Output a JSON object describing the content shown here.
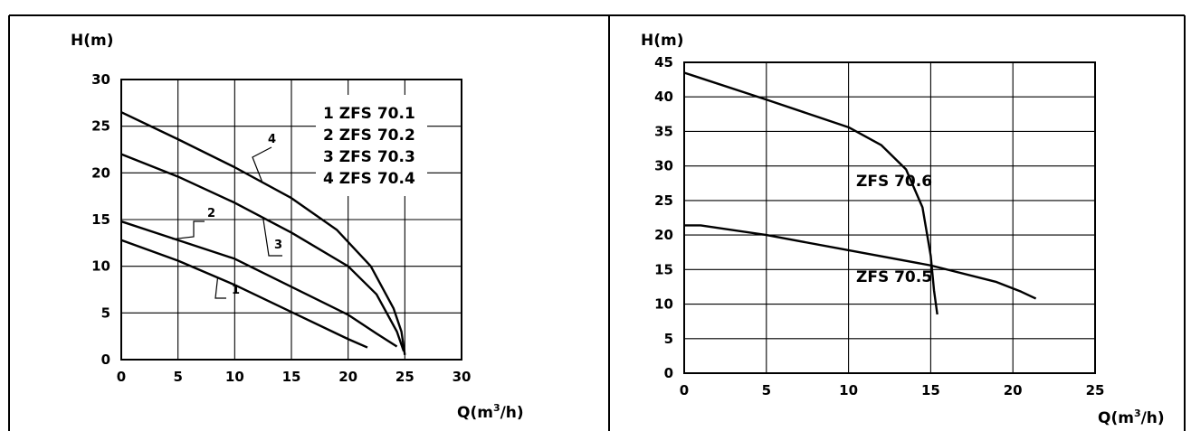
{
  "chart_data": [
    {
      "type": "line",
      "ylabel": "H(m)",
      "xlabel_main": "Q(m",
      "xlabel_sup": "3",
      "xlabel_tail": "/h)",
      "xlim": [
        0,
        30
      ],
      "ylim": [
        0,
        30
      ],
      "xticks": [
        0,
        5,
        10,
        15,
        20,
        25,
        30
      ],
      "yticks": [
        0,
        5,
        10,
        15,
        20,
        25,
        30
      ],
      "grid": true,
      "legend_box": [
        "1  ZFS 70.1",
        "2  ZFS 70.2",
        "3  ZFS 70.3",
        "4  ZFS 70.4"
      ],
      "series": [
        {
          "name": "1",
          "x": [
            0,
            5,
            10,
            15,
            20,
            21.7
          ],
          "y": [
            12.8,
            10.6,
            8,
            5.1,
            2.2,
            1.3
          ]
        },
        {
          "name": "2",
          "x": [
            0,
            5,
            10,
            15,
            20,
            22.5,
            24.3
          ],
          "y": [
            14.8,
            12.8,
            10.8,
            7.8,
            4.8,
            2.8,
            1.4
          ]
        },
        {
          "name": "3",
          "x": [
            0,
            5,
            10,
            15,
            20,
            22.5,
            24.3,
            24.9
          ],
          "y": [
            22,
            19.6,
            16.8,
            13.6,
            10,
            7,
            3,
            0.9
          ]
        },
        {
          "name": "4",
          "x": [
            0,
            5,
            10,
            15,
            19,
            22,
            24,
            24.7,
            25
          ],
          "y": [
            26.5,
            23.6,
            20.6,
            17.3,
            13.9,
            10,
            5.5,
            3,
            0.5
          ]
        }
      ]
    },
    {
      "type": "line",
      "ylabel": "H(m)",
      "xlabel_main": "Q(m",
      "xlabel_sup": "3",
      "xlabel_tail": "/h)",
      "xlim": [
        0,
        25
      ],
      "ylim": [
        0,
        45
      ],
      "xticks": [
        0,
        5,
        10,
        15,
        20,
        25
      ],
      "yticks": [
        0,
        5,
        10,
        15,
        20,
        25,
        30,
        35,
        40,
        45
      ],
      "grid": true,
      "series": [
        {
          "name": "ZFS 70.6",
          "x": [
            0,
            5,
            10,
            12,
            13.5,
            14.5,
            15,
            15.2,
            15.4
          ],
          "y": [
            43.5,
            39.6,
            35.6,
            33,
            29.5,
            24,
            17,
            12,
            8.5
          ]
        },
        {
          "name": "ZFS 70.5",
          "x": [
            0,
            1,
            5,
            10,
            15,
            19,
            20.5,
            21.4
          ],
          "y": [
            21.4,
            21.4,
            20,
            17.8,
            15.6,
            13.2,
            11.8,
            10.8
          ]
        }
      ]
    }
  ]
}
